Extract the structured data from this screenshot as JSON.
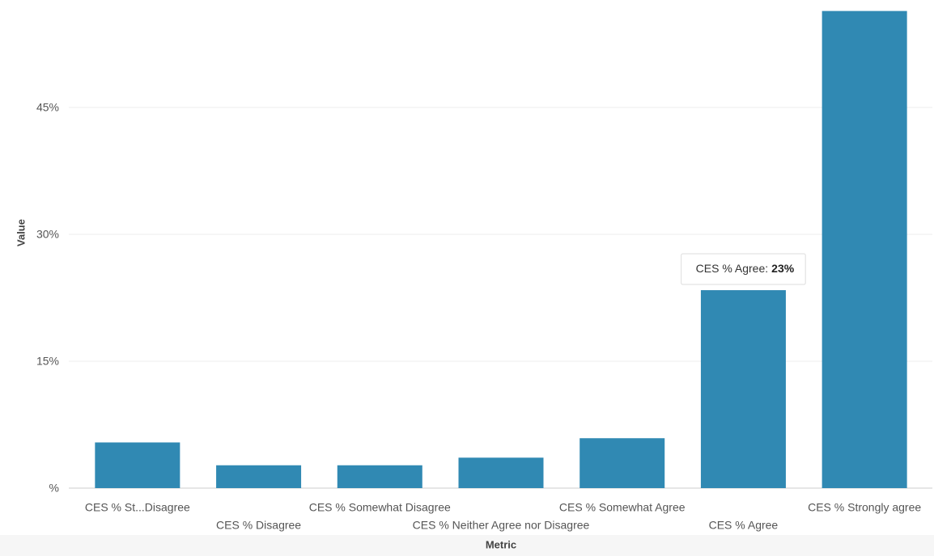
{
  "chart_data": {
    "type": "bar",
    "x_label": "Metric",
    "y_label": "Value",
    "categories": [
      "CES % St...Disagree",
      "CES % Disagree",
      "CES % Somewhat Disagree",
      "CES % Neither Agree nor Disagree",
      "CES % Somewhat Agree",
      "CES % Agree",
      "CES % Strongly agree"
    ],
    "values": [
      5.4,
      2.7,
      2.7,
      3.6,
      5.9,
      23.4,
      56.4
    ],
    "value_labels": [
      null,
      null,
      null,
      null,
      null,
      "23%",
      null
    ],
    "tooltip": "CES % Agree:",
    "color": "#3089b3",
    "ylim": [
      0,
      57.7
    ],
    "yticks": [
      {
        "value": 0,
        "label": "%"
      },
      {
        "value": 15,
        "label": "15%"
      },
      {
        "value": 30,
        "label": "30%"
      },
      {
        "value": 45,
        "label": "45%"
      }
    ],
    "grid": true
  }
}
